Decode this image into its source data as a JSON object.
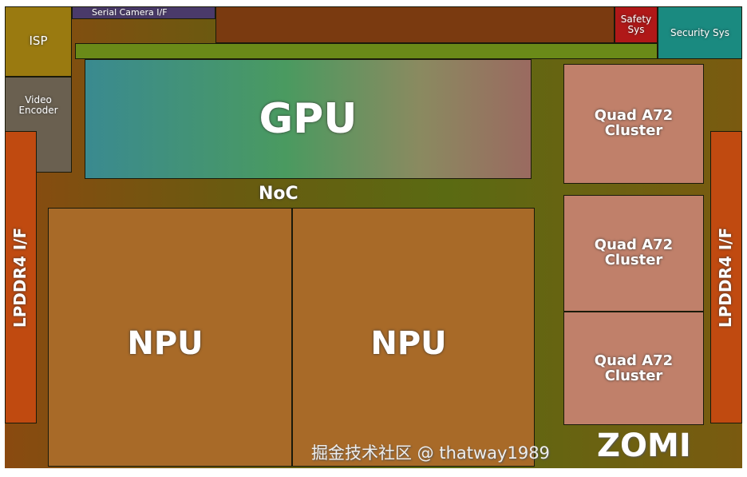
{
  "blocks": {
    "serial_camera": "Serial Camera I/F",
    "isp": "ISP",
    "video_encoder": "Video Encoder",
    "safety": "Safety Sys",
    "security": "Security Sys",
    "gpu": "GPU",
    "noc": "NoC",
    "npu_left": "NPU",
    "npu_right": "NPU",
    "cpu_1": "Quad A72 Cluster",
    "cpu_2": "Quad A72 Cluster",
    "cpu_3": "Quad A72 Cluster",
    "lpddr_left": "LPDDR4 I/F",
    "lpddr_right": "LPDDR4 I/F"
  },
  "watermark": {
    "zomi": "ZOMI",
    "juejin": "掘金技术社区 @ thatway1989"
  }
}
